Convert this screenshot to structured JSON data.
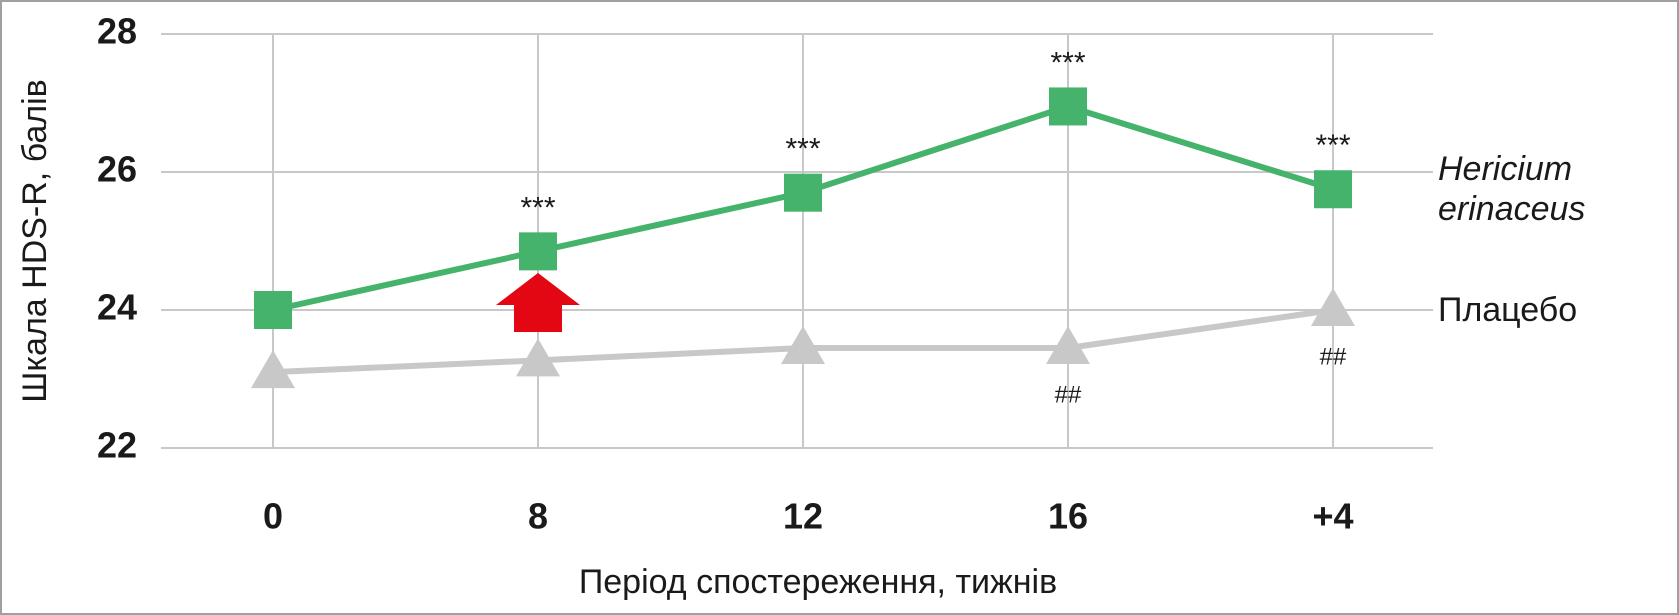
{
  "chart_data": {
    "type": "line",
    "x_label": "Період спостереження, тижнів",
    "y_label": "Шкала HDS-R, балів",
    "categories": [
      "0",
      "8",
      "12",
      "16",
      "+4"
    ],
    "ylim": [
      22,
      28
    ],
    "yticks": [
      22,
      24,
      26,
      28
    ],
    "grid": true,
    "series": [
      {
        "name": "Hericium erinaceus",
        "color": "#45b36b",
        "marker": "square",
        "values": [
          24.0,
          24.85,
          25.7,
          26.95,
          25.75
        ],
        "labels": [
          null,
          "***",
          "***",
          "***",
          "***"
        ]
      },
      {
        "name": "Плацебо",
        "color": "#c8c8c8",
        "marker": "triangle",
        "values": [
          23.1,
          23.27,
          23.45,
          23.45,
          24.0
        ],
        "labels": [
          null,
          null,
          null,
          "##",
          "##"
        ]
      }
    ]
  }
}
